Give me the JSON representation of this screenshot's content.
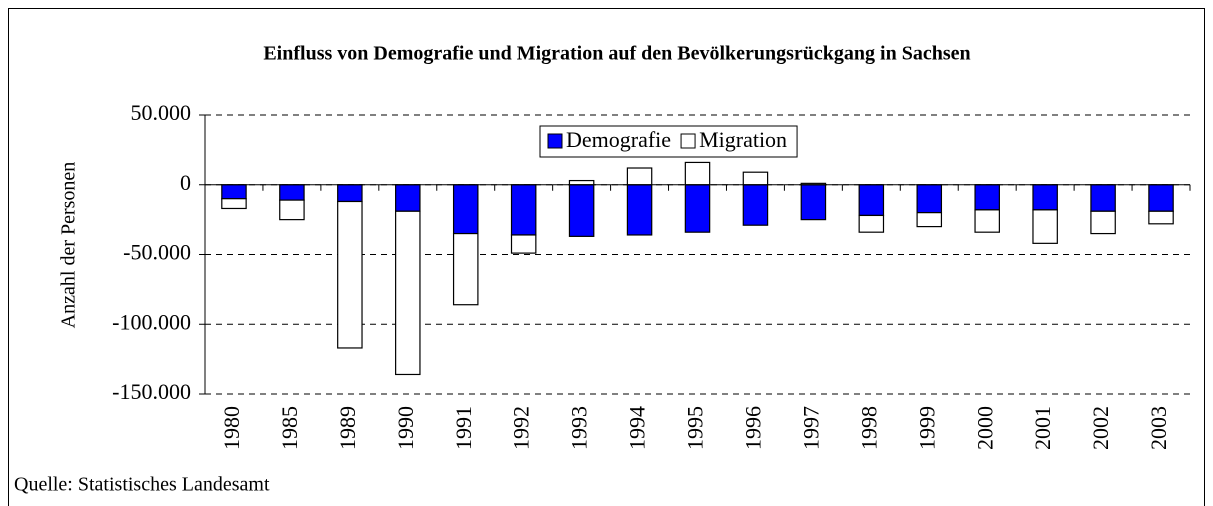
{
  "chart_data": {
    "type": "bar",
    "stacked": true,
    "title": "Einfluss von Demografie und Migration auf den Bevölkerungsrückgang in Sachsen",
    "ylabel": "Anzahl der Personen",
    "source": "Quelle: Statistisches Landesamt",
    "categories": [
      "1980",
      "1985",
      "1989",
      "1990",
      "1991",
      "1992",
      "1993",
      "1994",
      "1995",
      "1996",
      "1997",
      "1998",
      "1999",
      "2000",
      "2001",
      "2002",
      "2003"
    ],
    "series": [
      {
        "name": "Demografie",
        "color": "#0000ff",
        "values": [
          -10000,
          -11000,
          -12000,
          -19000,
          -35000,
          -36000,
          -37000,
          -36000,
          -34000,
          -29000,
          -25000,
          -22000,
          -20000,
          -18000,
          -18000,
          -19000,
          -19000
        ]
      },
      {
        "name": "Migration",
        "color": "#ffffff",
        "values": [
          -7000,
          -14000,
          -105000,
          -117000,
          -51000,
          -13000,
          3000,
          12000,
          16000,
          9000,
          1000,
          -12000,
          -10000,
          -16000,
          -24000,
          -16000,
          -9000
        ]
      }
    ],
    "ylim": [
      -150000,
      50000
    ],
    "yticks": [
      {
        "value": -150000,
        "label": "-150.000"
      },
      {
        "value": -100000,
        "label": "-100.000"
      },
      {
        "value": -50000,
        "label": "-50.000"
      },
      0,
      {
        "value": 50000,
        "label": "50.000"
      }
    ],
    "grid": true,
    "legend": "top"
  }
}
